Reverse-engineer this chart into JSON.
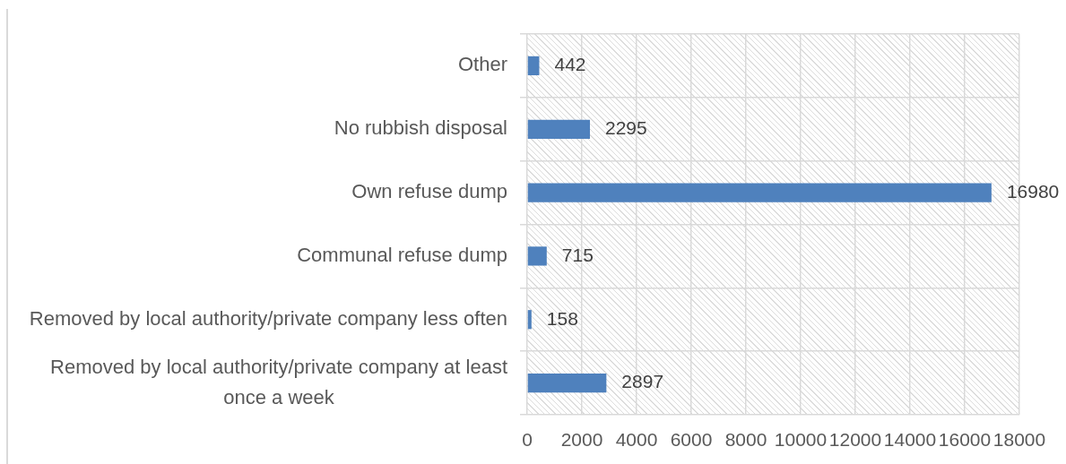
{
  "chart_data": {
    "type": "bar",
    "orientation": "horizontal",
    "categories": [
      "Other",
      "No rubbish disposal",
      "Own refuse dump",
      "Communal refuse dump",
      "Removed by local authority/private company less often",
      "Removed by local authority/private company at least once a week"
    ],
    "values": [
      442,
      2295,
      16980,
      715,
      158,
      2897
    ],
    "color": "#4f81bd",
    "xlim": [
      0,
      18000
    ],
    "xticks": [
      0,
      2000,
      4000,
      6000,
      8000,
      10000,
      12000,
      14000,
      16000,
      18000
    ],
    "grid": true,
    "data_labels": true
  }
}
